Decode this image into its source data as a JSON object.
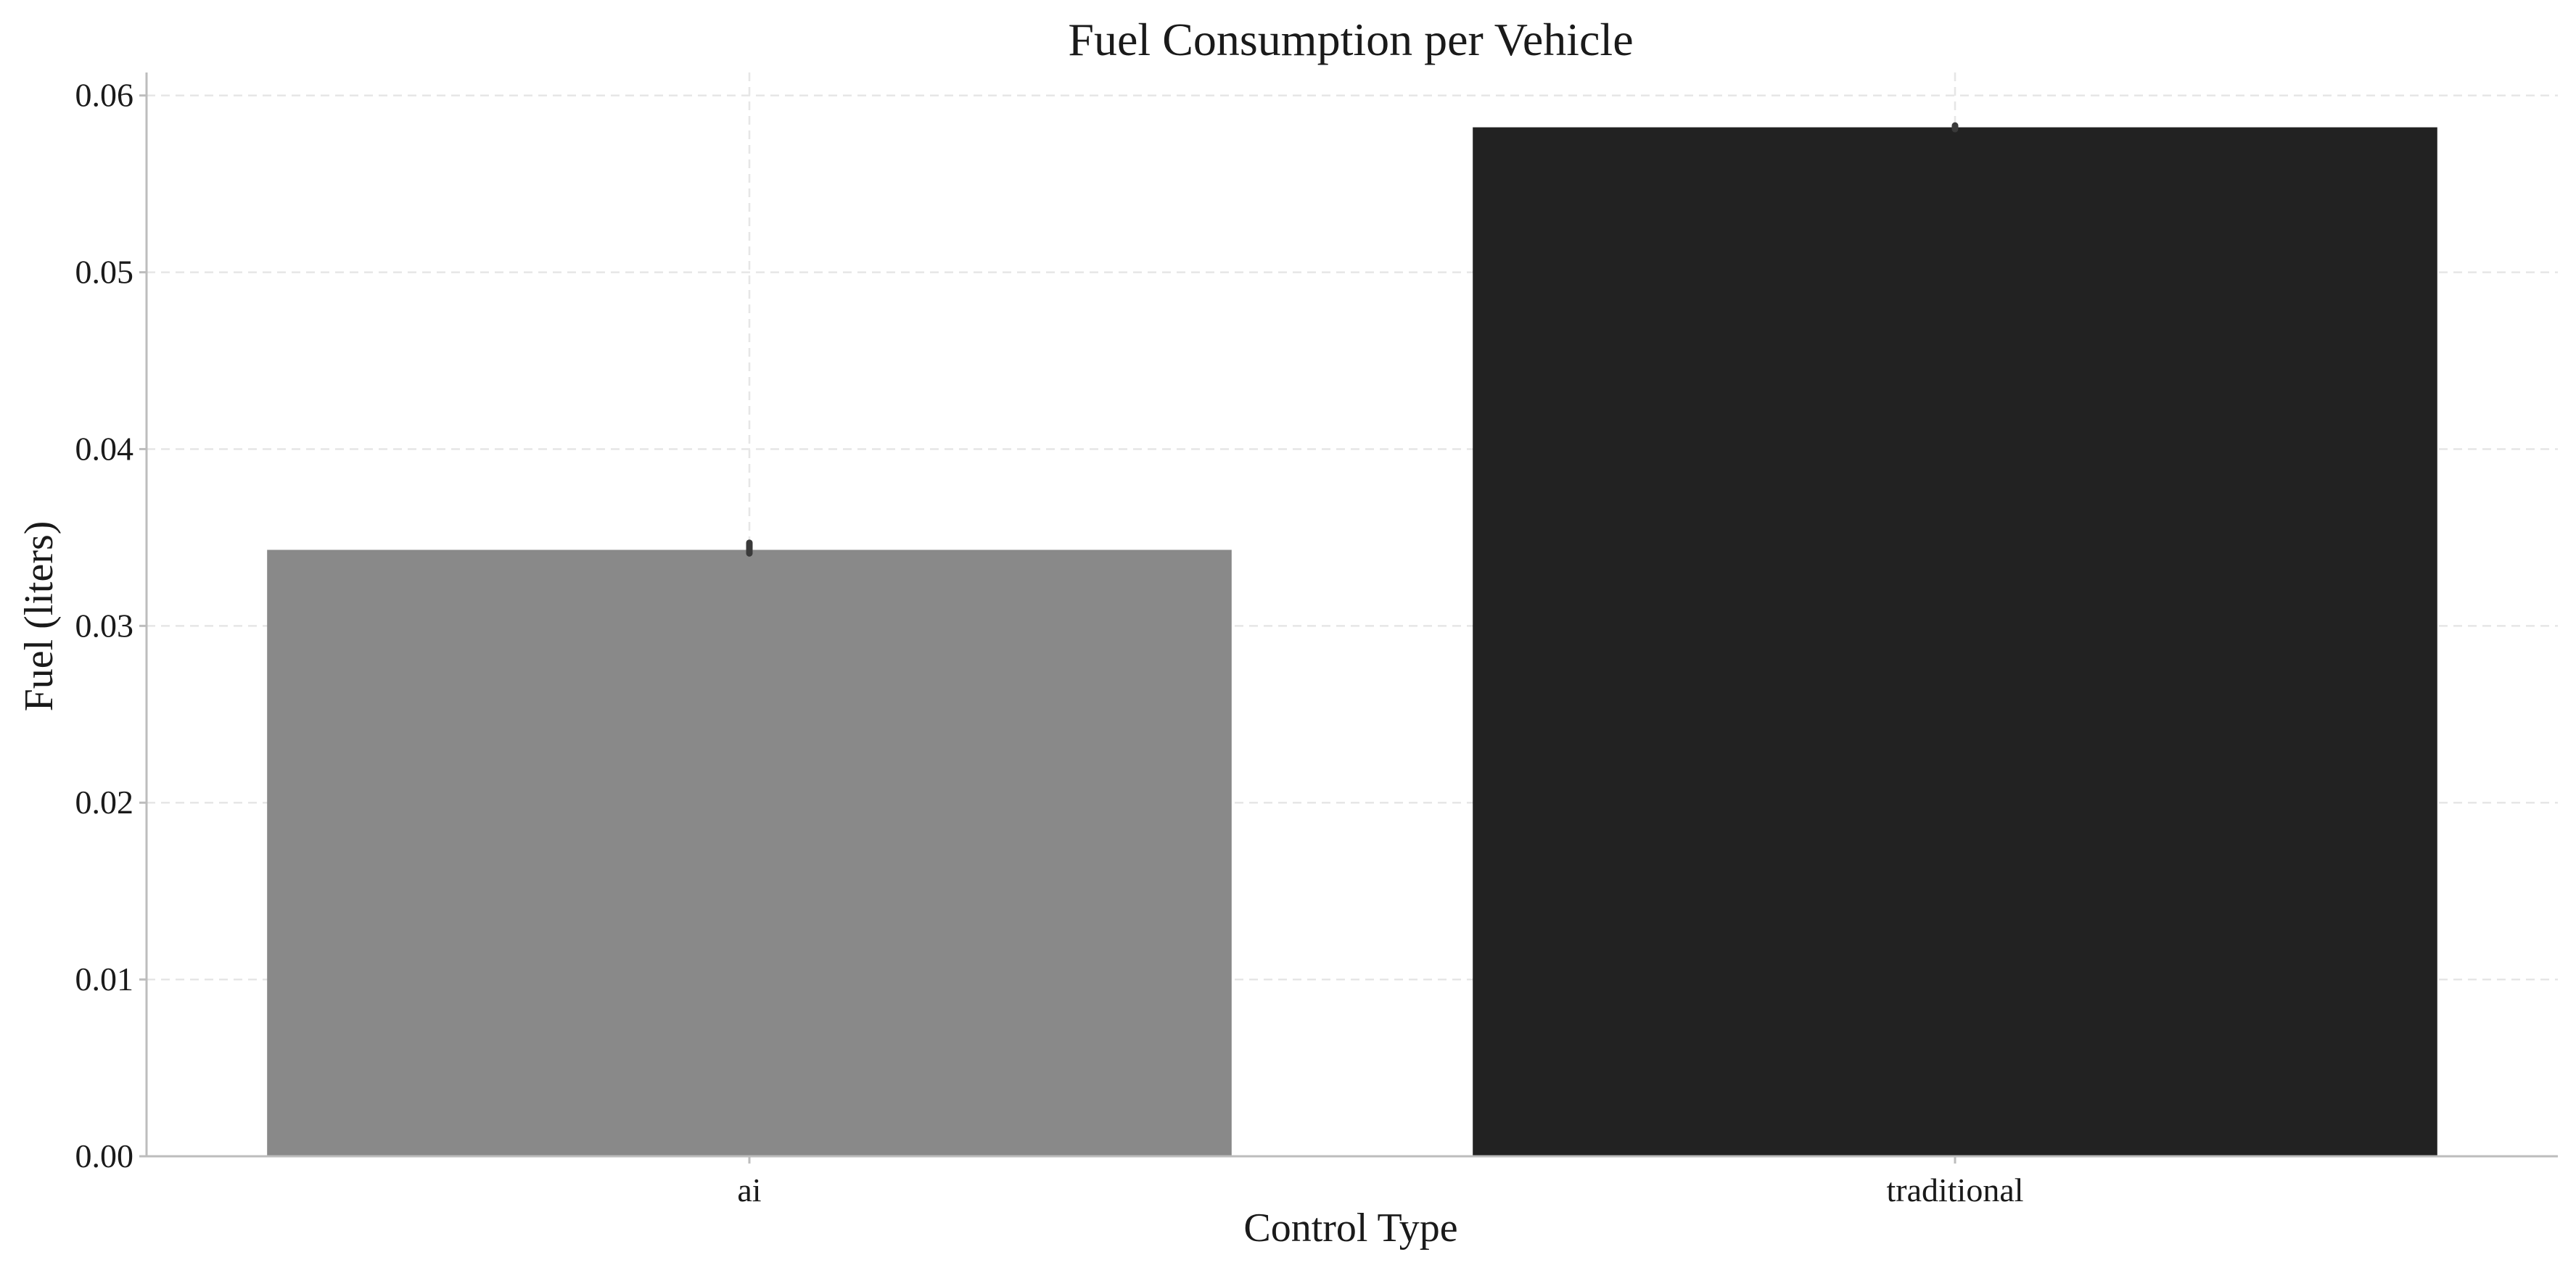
{
  "chart_data": {
    "type": "bar",
    "title": "Fuel Consumption per Vehicle",
    "xlabel": "Control Type",
    "ylabel": "Fuel (liters)",
    "categories": [
      "ai",
      "traditional"
    ],
    "values": [
      0.0343,
      0.0582
    ],
    "error_bars": [
      {
        "low": 0.0341,
        "high": 0.0347
      },
      {
        "low": 0.0581,
        "high": 0.0583
      }
    ],
    "colors": [
      "#898989",
      "#222222"
    ],
    "ylim": [
      0.0,
      0.0613
    ],
    "yticks": [
      0.0,
      0.01,
      0.02,
      0.03,
      0.04,
      0.05,
      0.06
    ],
    "ytick_labels": [
      "0.00",
      "0.01",
      "0.02",
      "0.03",
      "0.04",
      "0.05",
      "0.06"
    ],
    "grid": true,
    "legend": "none"
  }
}
